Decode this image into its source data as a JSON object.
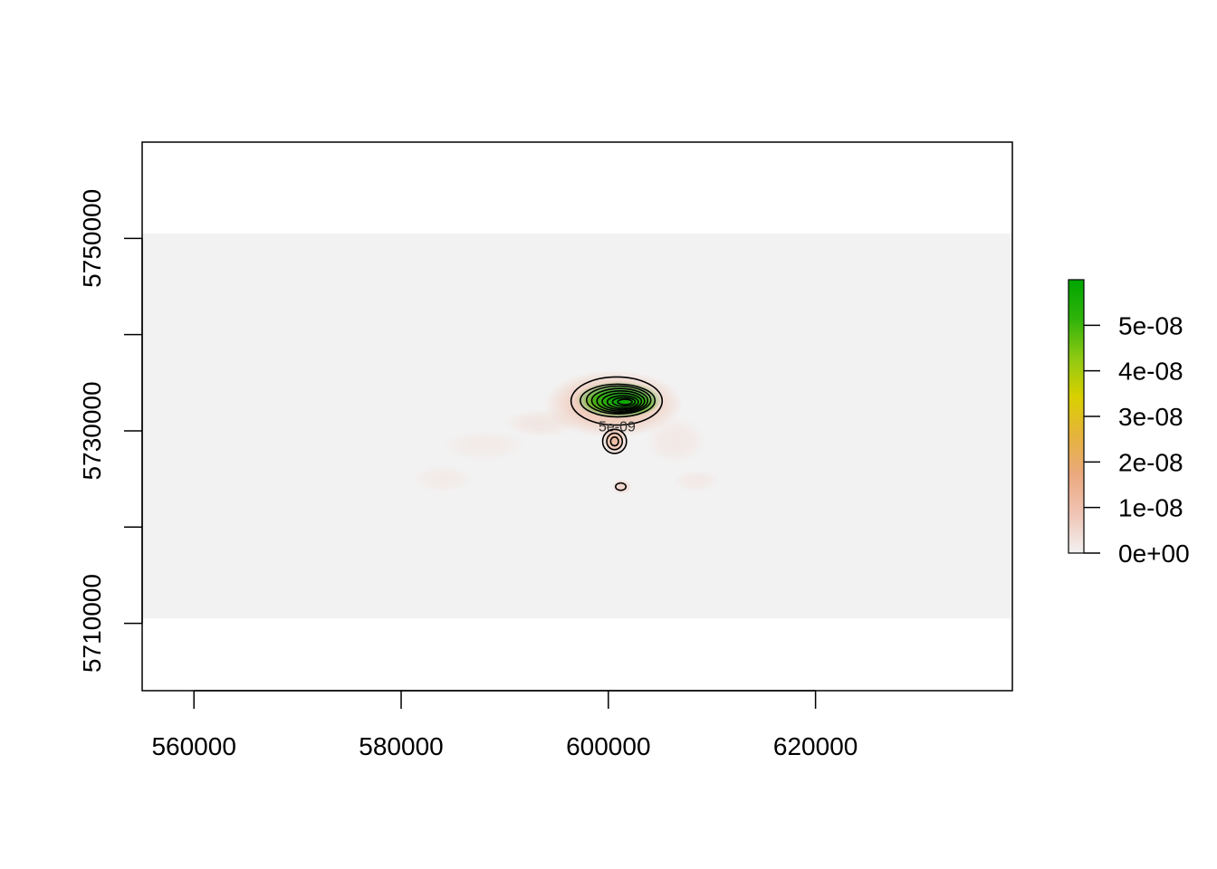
{
  "chart_data": {
    "type": "heatmap",
    "title": "",
    "xlabel": "",
    "ylabel": "",
    "xlim": [
      555000,
      639000
    ],
    "ylim": [
      5703000,
      5760000
    ],
    "grid": false,
    "raster_extent": {
      "x": [
        555000,
        639000
      ],
      "y": [
        5710500,
        5750500
      ]
    },
    "x_ticks": [
      {
        "value": 560000,
        "label": "560000"
      },
      {
        "value": 580000,
        "label": "580000"
      },
      {
        "value": 600000,
        "label": "600000"
      },
      {
        "value": 620000,
        "label": "620000"
      }
    ],
    "y_ticks": [
      {
        "value": 5710000,
        "label": "5710000"
      },
      {
        "value": 5720000,
        "label": ""
      },
      {
        "value": 5730000,
        "label": "5730000"
      },
      {
        "value": 5740000,
        "label": ""
      },
      {
        "value": 5750000,
        "label": "5750000"
      }
    ],
    "legend": {
      "placement": "right",
      "min": 0,
      "max": 6e-08,
      "colors": [
        "#f2f2f2",
        "#f0c4b5",
        "#eba97f",
        "#e5b33c",
        "#d9d000",
        "#8ec912",
        "#2fb30a",
        "#00a600"
      ],
      "ticks": [
        {
          "value": 0,
          "label": "0e+00"
        },
        {
          "value": 1e-08,
          "label": "1e-08"
        },
        {
          "value": 2e-08,
          "label": "2e-08"
        },
        {
          "value": 3e-08,
          "label": "3e-08"
        },
        {
          "value": 4e-08,
          "label": "4e-08"
        },
        {
          "value": 5e-08,
          "label": "5e-08"
        }
      ]
    },
    "density_blobs": [
      {
        "x": 601000,
        "y": 5733200,
        "sx": 2600,
        "sy": 1200,
        "value": 6e-08
      },
      {
        "x": 602500,
        "y": 5732800,
        "sx": 1400,
        "sy": 700,
        "value": 4.5e-08
      },
      {
        "x": 599400,
        "y": 5733000,
        "sx": 1200,
        "sy": 700,
        "value": 3e-08
      },
      {
        "x": 600500,
        "y": 5732800,
        "sx": 4200,
        "sy": 2200,
        "value": 1e-08
      },
      {
        "x": 600600,
        "y": 5729000,
        "sx": 700,
        "sy": 900,
        "value": 1.2e-08
      },
      {
        "x": 601300,
        "y": 5724200,
        "sx": 600,
        "sy": 500,
        "value": 6e-09
      },
      {
        "x": 593500,
        "y": 5730800,
        "sx": 2200,
        "sy": 900,
        "value": 2.5e-09
      },
      {
        "x": 588000,
        "y": 5728500,
        "sx": 2500,
        "sy": 1000,
        "value": 1.5e-09
      },
      {
        "x": 584000,
        "y": 5725000,
        "sx": 1800,
        "sy": 900,
        "value": 1.5e-09
      },
      {
        "x": 606500,
        "y": 5729000,
        "sx": 1800,
        "sy": 1500,
        "value": 2e-09
      },
      {
        "x": 608500,
        "y": 5724800,
        "sx": 1400,
        "sy": 700,
        "value": 1.8e-09
      }
    ],
    "contours": [
      {
        "x": 600800,
        "y": 5733100,
        "rx": 4400,
        "ry": 2500,
        "label": "5e-09"
      },
      {
        "x": 600900,
        "y": 5733150,
        "rx": 3600,
        "ry": 1700,
        "label": ""
      },
      {
        "x": 601000,
        "y": 5733200,
        "rx": 3100,
        "ry": 1450,
        "label": ""
      },
      {
        "x": 601100,
        "y": 5733150,
        "rx": 2700,
        "ry": 1250,
        "label": ""
      },
      {
        "x": 601200,
        "y": 5733100,
        "rx": 2300,
        "ry": 1050,
        "label": ""
      },
      {
        "x": 601300,
        "y": 5733050,
        "rx": 1900,
        "ry": 850,
        "label": ""
      },
      {
        "x": 601400,
        "y": 5733000,
        "rx": 1500,
        "ry": 650,
        "label": ""
      },
      {
        "x": 601500,
        "y": 5733000,
        "rx": 1100,
        "ry": 450,
        "label": ""
      },
      {
        "x": 601600,
        "y": 5733000,
        "rx": 700,
        "ry": 280,
        "label": ""
      },
      {
        "x": 600600,
        "y": 5728900,
        "rx": 1150,
        "ry": 1250,
        "label": ""
      },
      {
        "x": 600600,
        "y": 5728900,
        "rx": 750,
        "ry": 850,
        "label": ""
      },
      {
        "x": 600600,
        "y": 5728900,
        "rx": 380,
        "ry": 450,
        "label": ""
      },
      {
        "x": 601200,
        "y": 5724200,
        "rx": 500,
        "ry": 380,
        "label": ""
      }
    ]
  }
}
